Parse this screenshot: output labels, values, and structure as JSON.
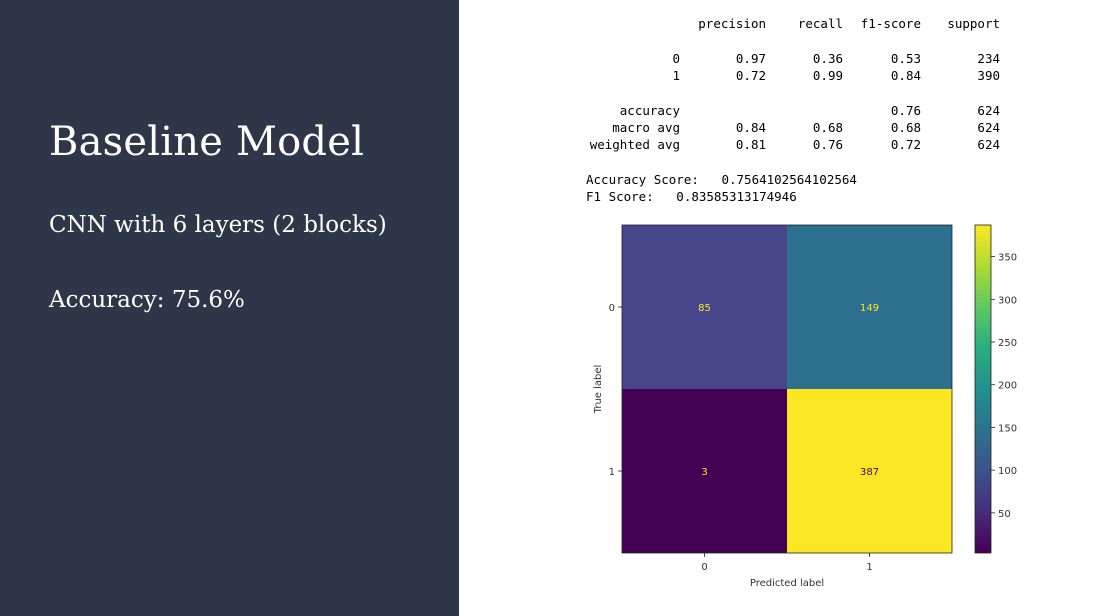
{
  "slide": {
    "title": "Baseline Model",
    "bullets": [
      "CNN with 6 layers (2 blocks)",
      "Accuracy: 75.6%"
    ],
    "background_color": "#2e3748",
    "text_color": "#ffffff"
  },
  "report": {
    "headers": [
      "precision",
      "recall",
      "f1-score",
      "support"
    ],
    "rows": [
      {
        "label": "0",
        "values": [
          "0.97",
          "0.36",
          "0.53",
          "234"
        ]
      },
      {
        "label": "1",
        "values": [
          "0.72",
          "0.99",
          "0.84",
          "390"
        ]
      },
      {
        "label": "accuracy",
        "values": [
          "",
          "",
          "0.76",
          "624"
        ]
      },
      {
        "label": "macro avg",
        "values": [
          "0.84",
          "0.68",
          "0.68",
          "624"
        ]
      },
      {
        "label": "weighted avg",
        "values": [
          "0.81",
          "0.76",
          "0.72",
          "624"
        ]
      }
    ],
    "accuracy_line": "Accuracy Score:   0.7564102564102564",
    "f1_line": "F1 Score:   0.83585313174946"
  },
  "chart_data": {
    "type": "heatmap",
    "title": "",
    "xlabel": "Predicted label",
    "ylabel": "True label",
    "x_categories": [
      "0",
      "1"
    ],
    "y_categories": [
      "0",
      "1"
    ],
    "matrix": [
      [
        85,
        149
      ],
      [
        3,
        387
      ]
    ],
    "colormap": "viridis",
    "vmin": 3,
    "vmax": 387,
    "colorbar_ticks": [
      50,
      100,
      150,
      200,
      250,
      300,
      350
    ],
    "cell_colors": [
      [
        "#46478a",
        "#2d6f8e"
      ],
      [
        "#440154",
        "#fde725"
      ]
    ],
    "label_colors": {
      "on_dark": "#fde725",
      "on_light": "#440154"
    },
    "grid": false
  }
}
